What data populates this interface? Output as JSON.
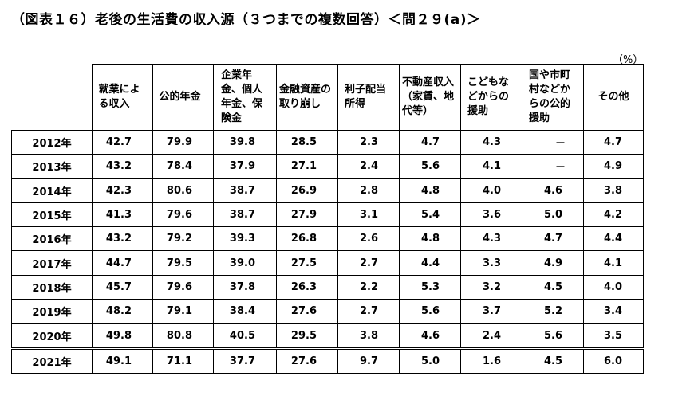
{
  "title": "（図表１６）老後の生活費の収入源（３つまでの複数回答）＜問２９(a)＞",
  "unit": "（%）",
  "chart_data": {
    "type": "table",
    "columns": [
      "就業による収入",
      "公的年金",
      "企業年金、個人年金、保険金",
      "金融資産の取り崩し",
      "利子配当所得",
      "不動産収入（家賃、地代等）",
      "こどもなどからの援助",
      "国や市町村などからの公的援助",
      "その他"
    ],
    "rows": [
      {
        "year": "2012年",
        "values": [
          "42.7",
          "79.9",
          "39.8",
          "28.5",
          "2.3",
          "4.7",
          "4.3",
          "－",
          "4.7"
        ]
      },
      {
        "year": "2013年",
        "values": [
          "43.2",
          "78.4",
          "37.9",
          "27.1",
          "2.4",
          "5.6",
          "4.1",
          "－",
          "4.9"
        ]
      },
      {
        "year": "2014年",
        "values": [
          "42.3",
          "80.6",
          "38.7",
          "26.9",
          "2.8",
          "4.8",
          "4.0",
          "4.6",
          "3.8"
        ]
      },
      {
        "year": "2015年",
        "values": [
          "41.3",
          "79.6",
          "38.7",
          "27.9",
          "3.1",
          "5.4",
          "3.6",
          "5.0",
          "4.2"
        ]
      },
      {
        "year": "2016年",
        "values": [
          "43.2",
          "79.2",
          "39.3",
          "26.8",
          "2.6",
          "4.8",
          "4.3",
          "4.7",
          "4.4"
        ]
      },
      {
        "year": "2017年",
        "values": [
          "44.7",
          "79.5",
          "39.0",
          "27.5",
          "2.7",
          "4.4",
          "3.3",
          "4.9",
          "4.1"
        ]
      },
      {
        "year": "2018年",
        "values": [
          "45.7",
          "79.6",
          "37.8",
          "26.3",
          "2.2",
          "5.3",
          "3.2",
          "4.5",
          "4.0"
        ]
      },
      {
        "year": "2019年",
        "values": [
          "48.2",
          "79.1",
          "38.4",
          "27.6",
          "2.7",
          "5.6",
          "3.7",
          "5.2",
          "3.4"
        ]
      },
      {
        "year": "2020年",
        "values": [
          "49.8",
          "80.8",
          "40.5",
          "29.5",
          "3.8",
          "4.6",
          "2.4",
          "5.6",
          "3.5"
        ]
      },
      {
        "year": "2021年",
        "values": [
          "49.1",
          "71.1",
          "37.7",
          "27.6",
          "9.7",
          "5.0",
          "1.6",
          "4.5",
          "6.0"
        ]
      }
    ]
  }
}
